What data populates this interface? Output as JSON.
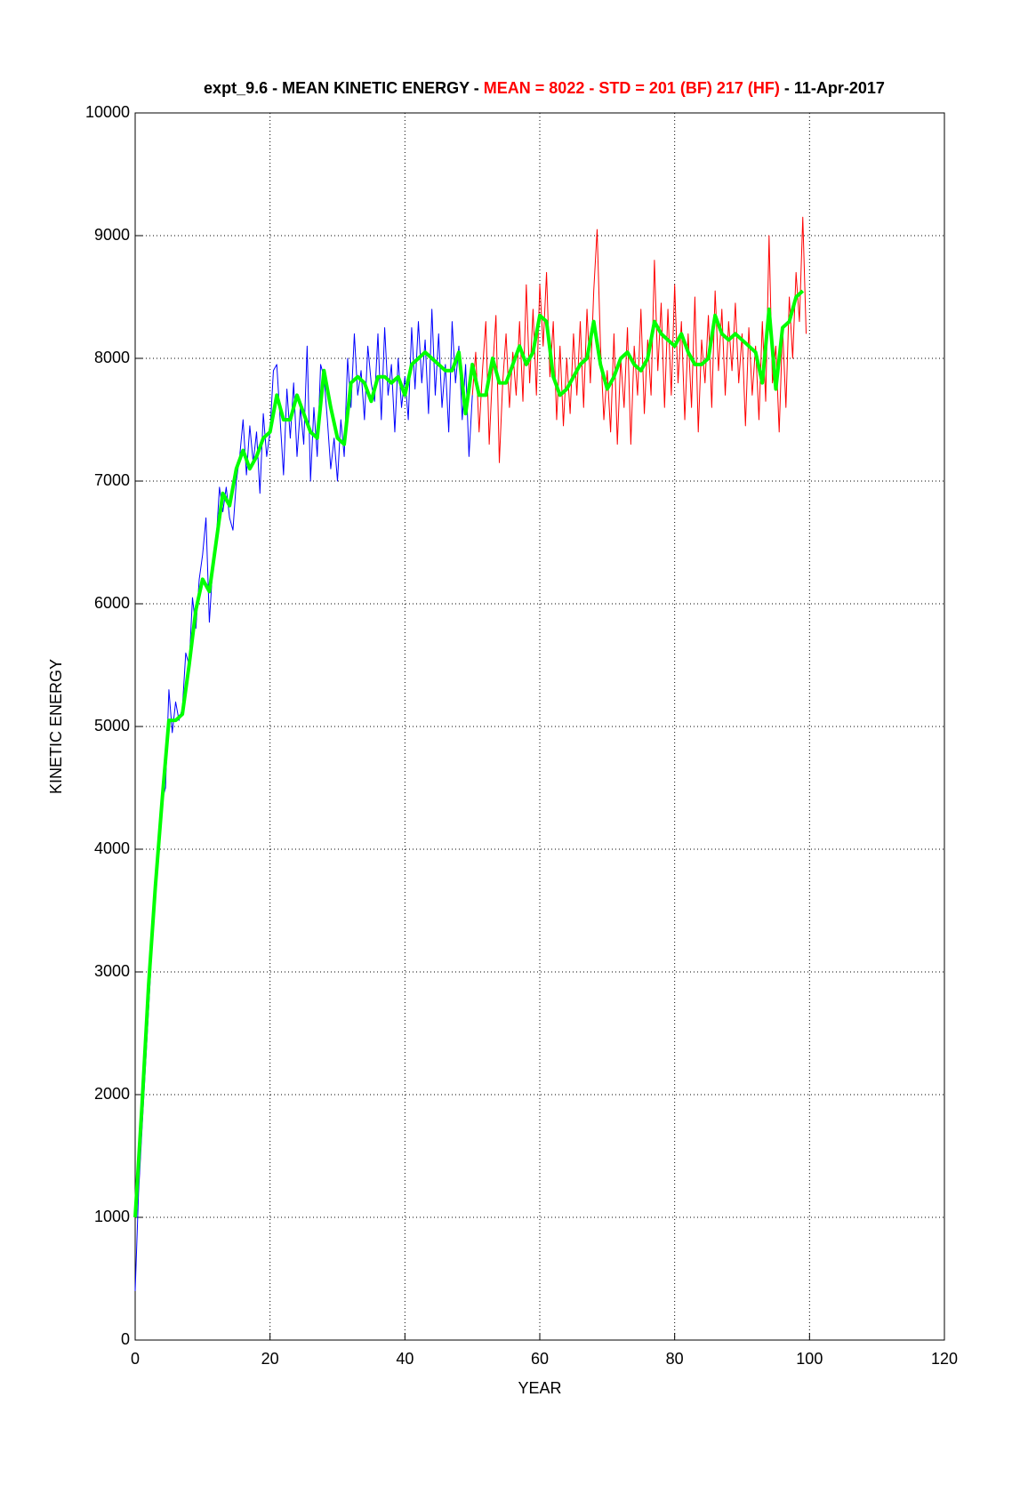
{
  "chart_data": {
    "type": "line",
    "title_parts": [
      {
        "text": "expt_9.6 - MEAN KINETIC ENERGY - ",
        "color": "#000000"
      },
      {
        "text": "MEAN =  8022 - STD =  201 (BF)  217 (HF)",
        "color": "#ff0000"
      },
      {
        "text": " - 11-Apr-2017",
        "color": "#000000"
      }
    ],
    "xlabel": "YEAR",
    "ylabel": "KINETIC ENERGY",
    "xlim": [
      0,
      120
    ],
    "ylim": [
      0,
      10000
    ],
    "xticks": [
      0,
      20,
      40,
      60,
      80,
      100,
      120
    ],
    "yticks": [
      0,
      1000,
      2000,
      3000,
      4000,
      5000,
      6000,
      7000,
      8000,
      9000,
      10000
    ],
    "grid": true,
    "series": [
      {
        "color": "#0000ff",
        "width": 1,
        "x": [
          0,
          0.5,
          1,
          1.5,
          2,
          2.5,
          3,
          3.5,
          4,
          4.5,
          5,
          5.5,
          6,
          6.5,
          7,
          7.5,
          8,
          8.5,
          9,
          9.5,
          10,
          10.5,
          11,
          11.5,
          12,
          12.5,
          13,
          13.5,
          14,
          14.5,
          15,
          15.5,
          16,
          16.5,
          17,
          17.5,
          18,
          18.5,
          19,
          19.5,
          20,
          20.5,
          21,
          21.5,
          22,
          22.5,
          23,
          23.5,
          24,
          24.5,
          25,
          25.5,
          26,
          26.5,
          27,
          27.5,
          28,
          28.5,
          29,
          29.5,
          30,
          30.5,
          31,
          31.5,
          32,
          32.5,
          33,
          33.5,
          34,
          34.5,
          35,
          35.5,
          36,
          36.5,
          37,
          37.5,
          38,
          38.5,
          39,
          39.5,
          40,
          40.5,
          41,
          41.5,
          42,
          42.5,
          43,
          43.5,
          44,
          44.5,
          45,
          45.5,
          46,
          46.5,
          47,
          47.5,
          48,
          48.5,
          49,
          49.5,
          50
        ],
        "values": [
          400,
          1200,
          1700,
          2200,
          2700,
          3200,
          3700,
          4100,
          4400,
          4500,
          5300,
          4950,
          5200,
          5050,
          5150,
          5600,
          5500,
          6050,
          5800,
          6200,
          6400,
          6700,
          5850,
          6300,
          6500,
          6950,
          6750,
          6950,
          6700,
          6600,
          7000,
          7200,
          7500,
          7050,
          7450,
          7150,
          7400,
          6900,
          7550,
          7200,
          7400,
          7900,
          7950,
          7500,
          7050,
          7750,
          7350,
          7800,
          7200,
          7600,
          7300,
          8100,
          7000,
          7600,
          7200,
          7950,
          7850,
          7500,
          7100,
          7350,
          7000,
          7500,
          7200,
          8000,
          7600,
          8200,
          7700,
          7900,
          7500,
          8100,
          7800,
          7650,
          8200,
          7500,
          8250,
          7700,
          7950,
          7400,
          8000,
          7600,
          7850,
          7500,
          8250,
          7750,
          8300,
          7800,
          8150,
          7550,
          8400,
          7700,
          8200,
          7600,
          7950,
          7400,
          8300,
          7800,
          8100,
          7500,
          7950,
          7200,
          7700
        ]
      },
      {
        "color": "#ff0000",
        "width": 1,
        "x": [
          50,
          50.5,
          51,
          51.5,
          52,
          52.5,
          53,
          53.5,
          54,
          54.5,
          55,
          55.5,
          56,
          56.5,
          57,
          57.5,
          58,
          58.5,
          59,
          59.5,
          60,
          60.5,
          61,
          61.5,
          62,
          62.5,
          63,
          63.5,
          64,
          64.5,
          65,
          65.5,
          66,
          66.5,
          67,
          67.5,
          68,
          68.5,
          69,
          69.5,
          70,
          70.5,
          71,
          71.5,
          72,
          72.5,
          73,
          73.5,
          74,
          74.5,
          75,
          75.5,
          76,
          76.5,
          77,
          77.5,
          78,
          78.5,
          79,
          79.5,
          80,
          80.5,
          81,
          81.5,
          82,
          82.5,
          83,
          83.5,
          84,
          84.5,
          85,
          85.5,
          86,
          86.5,
          87,
          87.5,
          88,
          88.5,
          89,
          89.5,
          90,
          90.5,
          91,
          91.5,
          92,
          92.5,
          93,
          93.5,
          94,
          94.5,
          95,
          95.5,
          96,
          96.5,
          97,
          97.5,
          98,
          98.5,
          99,
          99.5
        ],
        "values": [
          7700,
          8050,
          7400,
          7900,
          8300,
          7300,
          7900,
          8350,
          7150,
          7800,
          8200,
          7600,
          8050,
          7700,
          8300,
          7650,
          8600,
          7800,
          8400,
          7700,
          8600,
          8100,
          8700,
          7850,
          8300,
          7500,
          8100,
          7450,
          8000,
          7550,
          8200,
          7700,
          8300,
          7600,
          8400,
          7800,
          8550,
          9050,
          8100,
          7500,
          7900,
          7400,
          8200,
          7300,
          8000,
          7600,
          8250,
          7300,
          8100,
          7700,
          8400,
          7550,
          8150,
          7700,
          8800,
          7900,
          8450,
          7600,
          8400,
          7700,
          8600,
          7800,
          8300,
          7500,
          8200,
          7600,
          8500,
          7400,
          8150,
          7800,
          8350,
          7600,
          8550,
          7900,
          8400,
          7700,
          8300,
          7900,
          8450,
          7800,
          8200,
          7450,
          8250,
          7700,
          8100,
          7500,
          8300,
          7650,
          9000,
          7800,
          8100,
          7400,
          8250,
          7600,
          8500,
          8000,
          8700,
          8300,
          9150,
          8200
        ]
      },
      {
        "color": "#00ff00",
        "width": 4,
        "x": [
          0,
          1,
          2,
          3,
          4,
          5,
          6,
          7,
          8,
          9,
          10,
          11,
          12,
          13,
          14,
          15,
          16,
          17,
          18,
          19,
          20,
          21,
          22,
          23,
          24,
          25,
          26,
          27,
          28,
          29,
          30,
          31,
          32,
          33,
          34,
          35,
          36,
          37,
          38,
          39,
          40,
          41,
          42,
          43,
          44,
          45,
          46,
          47,
          48,
          49,
          50,
          51,
          52,
          53,
          54,
          55,
          56,
          57,
          58,
          59,
          60,
          61,
          62,
          63,
          64,
          65,
          66,
          67,
          68,
          69,
          70,
          71,
          72,
          73,
          74,
          75,
          76,
          77,
          78,
          79,
          80,
          81,
          82,
          83,
          84,
          85,
          86,
          87,
          88,
          89,
          90,
          91,
          92,
          93,
          94,
          95,
          96,
          97,
          98,
          99
        ],
        "values": [
          1000,
          1900,
          2900,
          3700,
          4400,
          5050,
          5050,
          5100,
          5500,
          5950,
          6200,
          6100,
          6500,
          6900,
          6800,
          7100,
          7250,
          7100,
          7200,
          7350,
          7400,
          7700,
          7500,
          7500,
          7700,
          7550,
          7400,
          7350,
          7900,
          7600,
          7350,
          7300,
          7800,
          7850,
          7800,
          7650,
          7850,
          7850,
          7800,
          7850,
          7700,
          7950,
          8000,
          8050,
          8000,
          7950,
          7900,
          7900,
          8050,
          7550,
          7950,
          7700,
          7700,
          8000,
          7800,
          7800,
          7950,
          8100,
          7950,
          8050,
          8350,
          8300,
          7850,
          7700,
          7750,
          7850,
          7950,
          8000,
          8300,
          7950,
          7750,
          7850,
          8000,
          8050,
          7950,
          7900,
          8000,
          8300,
          8200,
          8150,
          8100,
          8200,
          8050,
          7950,
          7950,
          8000,
          8350,
          8200,
          8150,
          8200,
          8150,
          8100,
          8050,
          7800,
          8400,
          7750,
          8250,
          8300,
          8500,
          8550
        ]
      }
    ]
  }
}
